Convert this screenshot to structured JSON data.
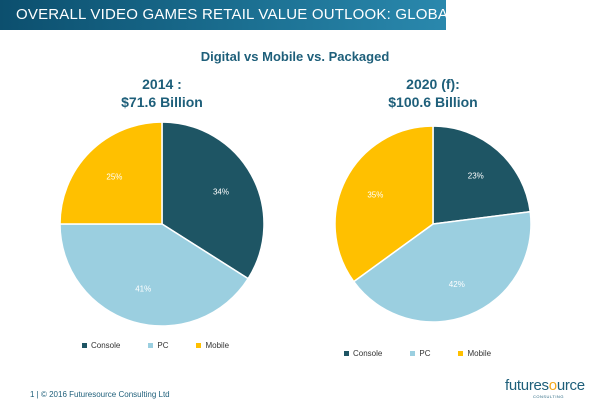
{
  "header": {
    "title": "OVERALL VIDEO GAMES RETAIL VALUE OUTLOOK: GLOBAL"
  },
  "subtitle": "Digital vs Mobile vs. Packaged",
  "colors": {
    "Console": "#1e5564",
    "PC": "#9bcfe0",
    "Mobile": "#ffc000"
  },
  "chart_data": [
    {
      "type": "pie",
      "title_line1": "2014 :",
      "title_line2": "$71.6 Billion",
      "categories": [
        "Console",
        "PC",
        "Mobile"
      ],
      "values": [
        34,
        41,
        25
      ],
      "labels": [
        "34%",
        "41%",
        "25%"
      ],
      "legend": [
        "Console",
        "PC",
        "Mobile"
      ],
      "legend_position": "bottom"
    },
    {
      "type": "pie",
      "title_line1": "2020 (f):",
      "title_line2": "$100.6 Billion",
      "categories": [
        "Console",
        "PC",
        "Mobile"
      ],
      "values": [
        23,
        42,
        35
      ],
      "labels": [
        "23%",
        "42%",
        "35%"
      ],
      "legend": [
        "Console",
        "PC",
        "Mobile"
      ],
      "legend_position": "bottom"
    }
  ],
  "footer": {
    "text": "1 | © 2016 Futuresource Consulting Ltd"
  },
  "logo": {
    "name": "futuresource",
    "main_a": "futures",
    "main_o": "o",
    "main_b": "urce",
    "sub": "CONSULTING"
  }
}
